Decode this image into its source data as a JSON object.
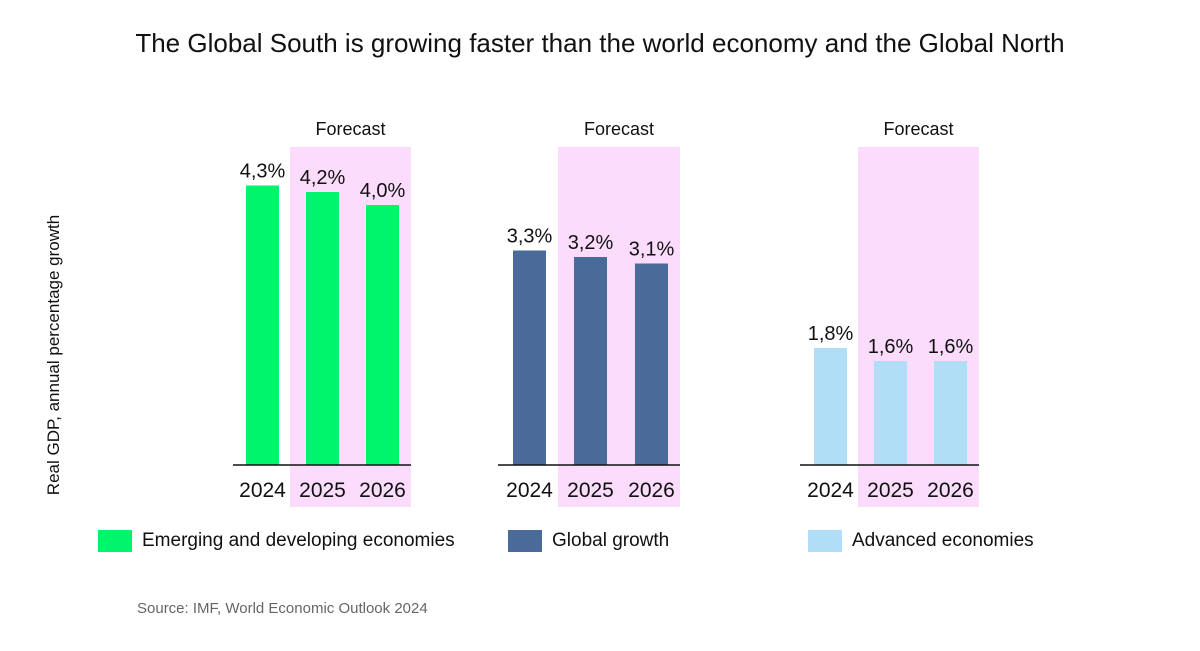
{
  "title": "The Global South is growing faster than the world economy and the Global North",
  "ylabel": "Real GDP, annual percentage growth",
  "source": "Source: IMF, World Economic Outlook 2024",
  "chart_data": {
    "type": "bar",
    "categories": [
      "2024",
      "2025",
      "2026"
    ],
    "forecast_label": "Forecast",
    "forecast_categories": [
      "2025",
      "2026"
    ],
    "forecast_color": "#fcdcfc",
    "series": [
      {
        "name": "Emerging and developing economies",
        "values": [
          4.3,
          4.2,
          4.0
        ],
        "labels": [
          "4,3%",
          "4,2%",
          "4,0%"
        ],
        "color": "#00f56a"
      },
      {
        "name": "Global growth",
        "values": [
          3.3,
          3.2,
          3.1
        ],
        "labels": [
          "3,3%",
          "3,2%",
          "3,1%"
        ],
        "color": "#4a6b99"
      },
      {
        "name": "Advanced economies",
        "values": [
          1.8,
          1.6,
          1.6
        ],
        "labels": [
          "1,8%",
          "1,6%",
          "1,6%"
        ],
        "color": "#b0def7"
      }
    ]
  }
}
